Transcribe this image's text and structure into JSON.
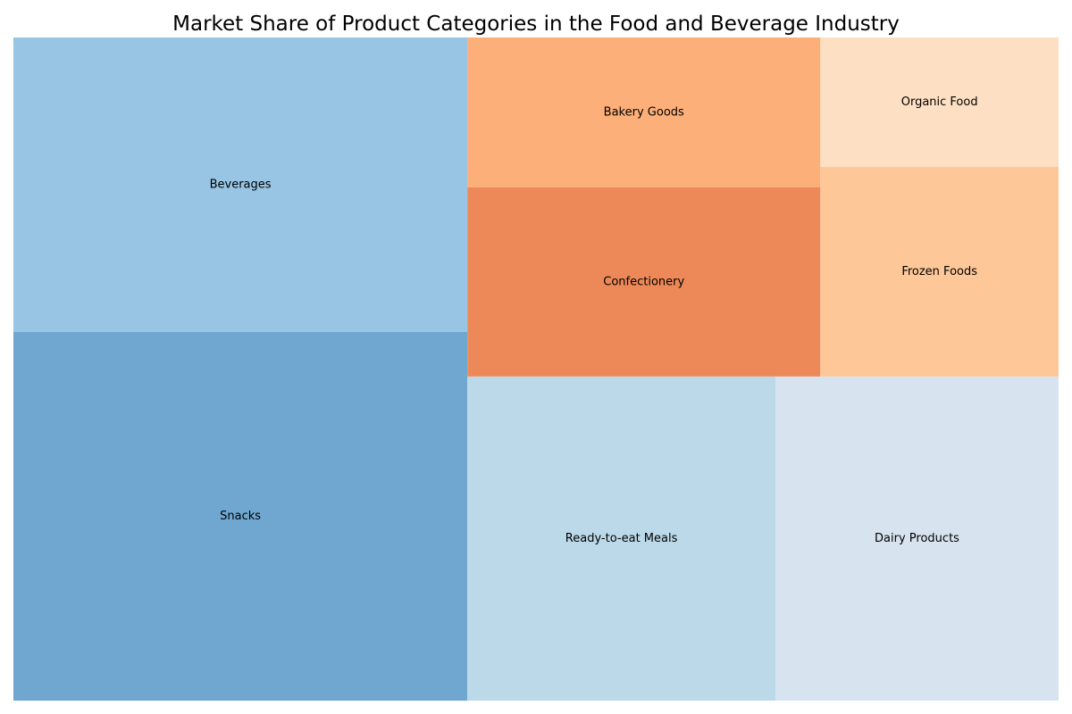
{
  "chart_data": {
    "type": "treemap",
    "title": "Market Share of Product Categories in the Food and Beverage Industry",
    "unit": "share",
    "categories": [
      {
        "label": "Snacks",
        "value": 22.8,
        "color": "#6fa7d0"
      },
      {
        "label": "Beverages",
        "value": 18.2,
        "color": "#98c5e3"
      },
      {
        "label": "Ready-to-eat Meals",
        "value": 13.6,
        "color": "#bcd9ea"
      },
      {
        "label": "Dairy Products",
        "value": 12.5,
        "color": "#d7e4f0"
      },
      {
        "label": "Confectionery",
        "value": 9.1,
        "color": "#ed8958"
      },
      {
        "label": "Bakery Goods",
        "value": 7.2,
        "color": "#fdaf79"
      },
      {
        "label": "Frozen Foods",
        "value": 6.8,
        "color": "#fdc798"
      },
      {
        "label": "Organic Food",
        "value": 4.2,
        "color": "#fde0c3"
      }
    ],
    "legend": "none",
    "grid": false
  }
}
